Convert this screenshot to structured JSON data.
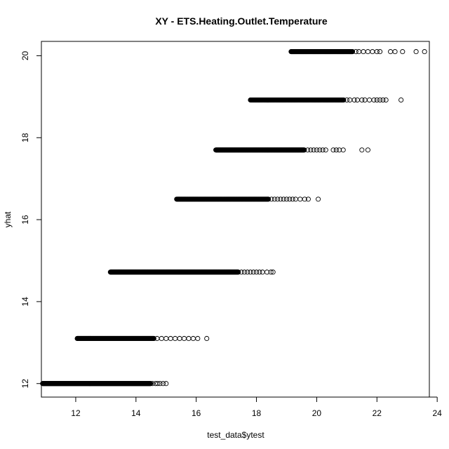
{
  "chart_data": {
    "type": "scatter",
    "title": "XY - ETS.Heating.Outlet.Temperature",
    "xlabel": "test_data$ytest",
    "ylabel": "yhat",
    "xlim": [
      10.86,
      23.74
    ],
    "ylim": [
      11.67,
      20.35
    ],
    "xticks": [
      12,
      14,
      16,
      18,
      20,
      22,
      24
    ],
    "yticks": [
      12,
      14,
      16,
      18,
      20
    ],
    "marker": "open-circle",
    "grid": false,
    "legend": "none",
    "point_color": "#000000",
    "clusters": [
      {
        "y": 12.0,
        "dense_x": [
          10.9,
          14.5
        ],
        "sparse_x": [
          14.55,
          14.65,
          14.72,
          14.8,
          14.9,
          15.0
        ]
      },
      {
        "y": 13.1,
        "dense_x": [
          12.05,
          14.6
        ],
        "sparse_x": [
          14.7,
          14.85,
          15.0,
          15.15,
          15.3,
          15.45,
          15.6,
          15.75,
          15.9,
          16.05,
          16.35
        ]
      },
      {
        "y": 14.72,
        "dense_x": [
          13.15,
          17.4
        ],
        "sparse_x": [
          17.5,
          17.6,
          17.7,
          17.8,
          17.9,
          18.0,
          18.1,
          18.2,
          18.35,
          18.48,
          18.55
        ]
      },
      {
        "y": 16.5,
        "dense_x": [
          15.35,
          18.4
        ],
        "sparse_x": [
          18.5,
          18.6,
          18.7,
          18.8,
          18.9,
          19.0,
          19.1,
          19.2,
          19.3,
          19.45,
          19.6,
          19.72,
          20.05
        ]
      },
      {
        "y": 17.7,
        "dense_x": [
          16.65,
          19.6
        ],
        "sparse_x": [
          19.7,
          19.8,
          19.9,
          20.0,
          20.1,
          20.2,
          20.3,
          20.55,
          20.65,
          20.75,
          20.88,
          21.5,
          21.7
        ]
      },
      {
        "y": 18.92,
        "dense_x": [
          17.8,
          20.9
        ],
        "sparse_x": [
          21.0,
          21.1,
          21.25,
          21.35,
          21.5,
          21.6,
          21.75,
          21.9,
          22.0,
          22.1,
          22.2,
          22.3,
          22.8
        ]
      },
      {
        "y": 20.1,
        "dense_x": [
          19.15,
          21.2
        ],
        "sparse_x": [
          21.3,
          21.4,
          21.55,
          21.7,
          21.85,
          22.0,
          22.1,
          22.45,
          22.6,
          22.85,
          23.3,
          23.58
        ]
      }
    ]
  }
}
